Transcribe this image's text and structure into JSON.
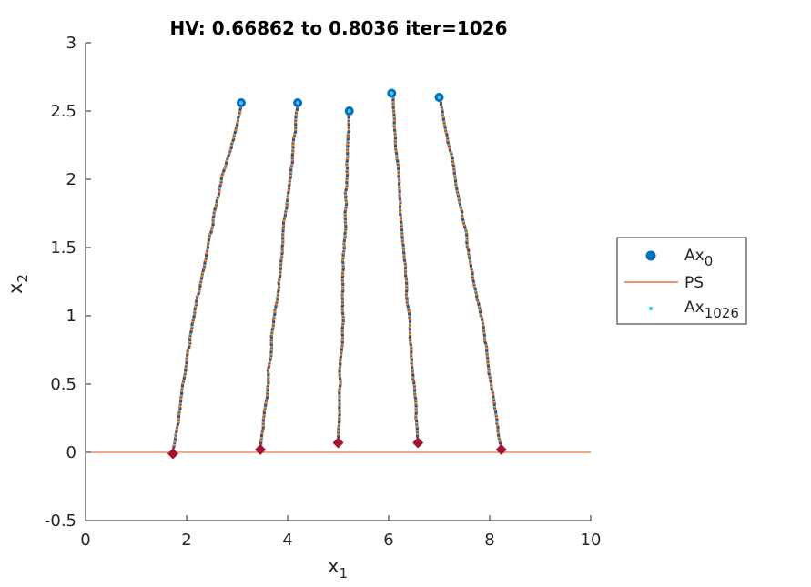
{
  "chart_data": {
    "type": "scatter",
    "title": "HV: 0.66862 to 0.8036 iter=1026",
    "xlabel": {
      "base": "x",
      "sub": "1"
    },
    "ylabel": {
      "base": "x",
      "sub": "2"
    },
    "xlim": [
      0,
      10
    ],
    "ylim": [
      -0.5,
      3
    ],
    "xticks": [
      0,
      2,
      4,
      6,
      8,
      10
    ],
    "yticks": [
      -0.5,
      0,
      0.5,
      1,
      1.5,
      2,
      2.5,
      3
    ],
    "grid": false,
    "legend_placement": "outside-right",
    "legend": [
      {
        "base": "Ax",
        "sub": "0",
        "kind": "marker"
      },
      {
        "base": "PS",
        "sub": "",
        "kind": "line"
      },
      {
        "base": "Ax",
        "sub": "1026",
        "kind": "dot"
      }
    ],
    "initial_points": [
      {
        "x": 3.08,
        "y": 2.56
      },
      {
        "x": 4.2,
        "y": 2.56
      },
      {
        "x": 5.22,
        "y": 2.5
      },
      {
        "x": 6.06,
        "y": 2.63
      },
      {
        "x": 7.0,
        "y": 2.6
      }
    ],
    "final_points": [
      {
        "x": 1.73,
        "y": -0.01
      },
      {
        "x": 3.46,
        "y": 0.02
      },
      {
        "x": 5.0,
        "y": 0.07
      },
      {
        "x": 6.58,
        "y": 0.07
      },
      {
        "x": 8.23,
        "y": 0.02
      }
    ],
    "ps_line": {
      "y": 0
    },
    "colors": {
      "ax0": "#0072BD",
      "ps": "#D95319",
      "ax_final": "#4DBEEE",
      "final_marker": "#A2142F",
      "trajectory_palette": [
        "#0072BD",
        "#D95319",
        "#EDB120",
        "#7E2F8E",
        "#77AC30",
        "#4DBEEE",
        "#A2142F"
      ]
    }
  }
}
